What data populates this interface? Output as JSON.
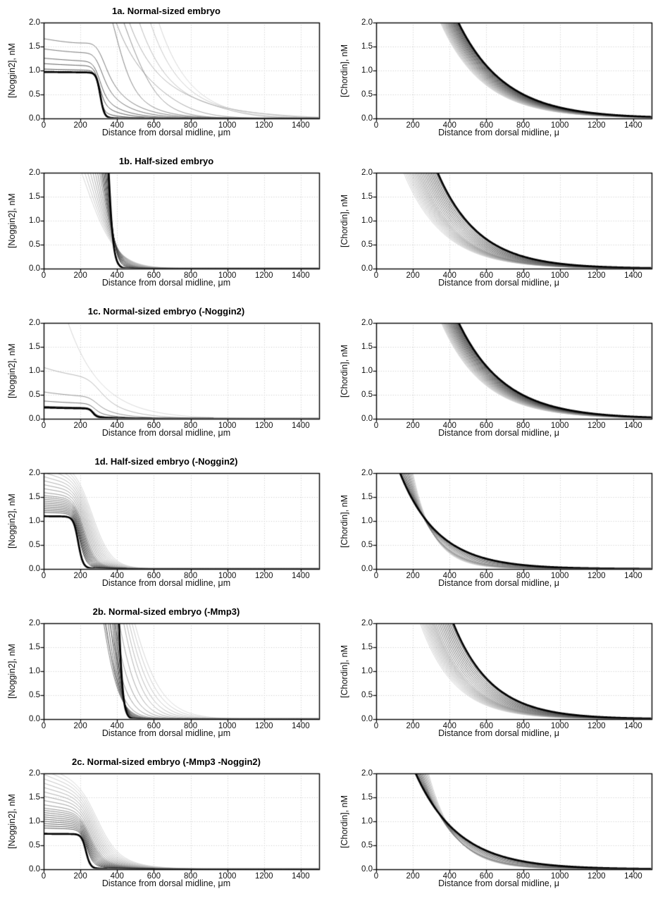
{
  "figure": {
    "background": "#ffffff",
    "frame_color": "#000000",
    "grid_color": "#c8c8c8",
    "grid_style": "dotted",
    "curve_shade_light": 207,
    "curve_shade_dark": 38,
    "final_curve_color": "#000000",
    "rows": 6,
    "cols": 2
  },
  "chart_data": [
    {
      "id": "1a_noggin2",
      "type": "line",
      "title": "1a. Normal-sized embryo",
      "xlabel": "Distance from dorsal midline, μm",
      "ylabel": "[Noggin2], nM",
      "xlim": [
        0,
        1500
      ],
      "ylim": [
        0,
        2
      ],
      "xtick_values": [
        0,
        200,
        400,
        600,
        800,
        1000,
        1200,
        1400
      ],
      "xtick_labels": [
        "0",
        "200",
        "400",
        "600",
        "800",
        "1000",
        "1200",
        "1400"
      ],
      "ytick_values": [
        0,
        0.5,
        1,
        1.5,
        2
      ],
      "ytick_labels": [
        "0.0",
        "0.5",
        "1.0",
        "1.5",
        "2.0"
      ],
      "grid": true,
      "family": {
        "model": "noggin",
        "n_curves": 12,
        "keyframes": [
          {
            "B": 80,
            "lB": 170,
            "P": 0,
            "e": 1600,
            "w": 120,
            "T": 0,
            "lT": 100
          },
          {
            "B": 40,
            "lB": 165,
            "P": 0.15,
            "e": 1200,
            "w": 120,
            "T": 0,
            "lT": 110
          },
          {
            "B": 16,
            "lB": 150,
            "P": 0.6,
            "e": 600,
            "w": 100,
            "T": 0.1,
            "lT": 130
          },
          {
            "B": 0.3,
            "lB": 400,
            "P": 1.45,
            "e": 310,
            "w": 28,
            "T": 1.3,
            "lT": 140
          },
          {
            "B": 0.15,
            "lB": 400,
            "P": 1.13,
            "e": 300,
            "w": 20,
            "T": 0.55,
            "lT": 120
          },
          {
            "B": 0.05,
            "lB": 400,
            "P": 0.98,
            "e": 302,
            "w": 12,
            "T": 0.15,
            "lT": 90
          }
        ],
        "final_curve": {
          "B": 0.02,
          "lB": 400,
          "P": 0.95,
          "e": 308,
          "w": 11,
          "T": 0.02,
          "lT": 60
        }
      }
    },
    {
      "id": "1a_chordin",
      "type": "line",
      "title": "",
      "xlabel": "Distance from dorsal midline, μ",
      "ylabel": "[Chordin], nM",
      "xlim": [
        0,
        1500
      ],
      "ylim": [
        0,
        2
      ],
      "xtick_values": [
        0,
        200,
        400,
        600,
        800,
        1000,
        1200,
        1400
      ],
      "xtick_labels": [
        "0",
        "200",
        "400",
        "600",
        "800",
        "1000",
        "1200",
        "1400"
      ],
      "ytick_values": [
        0,
        0.5,
        1,
        1.5,
        2
      ],
      "ytick_labels": [
        "0.0",
        "0.5",
        "1.0",
        "1.5",
        "2.0"
      ],
      "grid": true,
      "family": {
        "model": "chordin",
        "n_curves": 30,
        "keyframes": [
          {
            "x2": 350,
            "l": 235
          },
          {
            "x2": 448,
            "l": 255
          }
        ],
        "final_curve": {
          "x2": 448,
          "l": 255
        }
      }
    },
    {
      "id": "1b_noggin2",
      "type": "line",
      "title": "1b. Half-sized embryo",
      "xlabel": "Distance from dorsal midline, μm",
      "ylabel": "[Noggin2], nM",
      "xlim": [
        0,
        1500
      ],
      "ylim": [
        0,
        2
      ],
      "xtick_values": [
        0,
        200,
        400,
        600,
        800,
        1000,
        1200,
        1400
      ],
      "xtick_labels": [
        "0",
        "200",
        "400",
        "600",
        "800",
        "1000",
        "1200",
        "1400"
      ],
      "ytick_values": [
        0,
        0.5,
        1,
        1.5,
        2
      ],
      "ytick_labels": [
        "0.0",
        "0.5",
        "1.0",
        "1.5",
        "2.0"
      ],
      "grid": true,
      "family": {
        "model": "noggin",
        "n_curves": 16,
        "keyframes": [
          {
            "B": 0,
            "lB": 100,
            "P": 3.5,
            "e": 230,
            "w": 82,
            "T": 0,
            "lT": 100
          },
          {
            "B": 0,
            "lB": 100,
            "P": 4.5,
            "e": 300,
            "w": 45,
            "T": 0,
            "lT": 100
          },
          {
            "B": 0,
            "lB": 100,
            "P": 5,
            "e": 340,
            "w": 22,
            "T": 0,
            "lT": 100
          }
        ],
        "final_curve": {
          "B": 0,
          "lB": 100,
          "P": 5,
          "e": 348,
          "w": 15,
          "T": 0,
          "lT": 100
        }
      }
    },
    {
      "id": "1b_chordin",
      "type": "line",
      "title": "",
      "xlabel": "Distance from dorsal midline, μ",
      "ylabel": "[Chordin], nM",
      "xlim": [
        0,
        1500
      ],
      "ylim": [
        0,
        2
      ],
      "xtick_values": [
        0,
        200,
        400,
        600,
        800,
        1000,
        1200,
        1400
      ],
      "xtick_labels": [
        "0",
        "200",
        "400",
        "600",
        "800",
        "1000",
        "1200",
        "1400"
      ],
      "ytick_values": [
        0,
        0.5,
        1,
        1.5,
        2
      ],
      "ytick_labels": [
        "0.0",
        "0.5",
        "1.0",
        "1.5",
        "2.0"
      ],
      "grid": true,
      "family": {
        "model": "chordin",
        "n_curves": 22,
        "keyframes": [
          {
            "x2": 150,
            "l": 215
          },
          {
            "x2": 240,
            "l": 205
          },
          {
            "x2": 335,
            "l": 225
          }
        ],
        "final_curve": {
          "x2": 335,
          "l": 225
        }
      }
    },
    {
      "id": "1c_noggin2",
      "type": "line",
      "title": "1c. Normal-sized embryo (-Noggin2)",
      "xlabel": "Distance from dorsal midline, μm",
      "ylabel": "[Noggin2], nM",
      "xlim": [
        0,
        1500
      ],
      "ylim": [
        0,
        2
      ],
      "xtick_values": [
        0,
        200,
        400,
        600,
        800,
        1000,
        1200,
        1400
      ],
      "xtick_labels": [
        "0",
        "200",
        "400",
        "600",
        "800",
        "1000",
        "1200",
        "1400"
      ],
      "ytick_values": [
        0,
        0.5,
        1,
        1.5,
        2
      ],
      "ytick_labels": [
        "0.0",
        "0.5",
        "1.0",
        "1.5",
        "2.0"
      ],
      "grid": true,
      "family": {
        "model": "noggin",
        "n_curves": 5,
        "keyframes": [
          {
            "B": 4.2,
            "lB": 180,
            "P": 0,
            "e": 1600,
            "w": 120,
            "T": 0,
            "lT": 100
          },
          {
            "B": 0.45,
            "lB": 350,
            "P": 0.62,
            "e": 280,
            "w": 38,
            "T": 0.55,
            "lT": 150
          },
          {
            "B": 0.2,
            "lB": 350,
            "P": 0.36,
            "e": 275,
            "w": 26,
            "T": 0.28,
            "lT": 130
          },
          {
            "B": 0.1,
            "lB": 350,
            "P": 0.27,
            "e": 272,
            "w": 18,
            "T": 0.14,
            "lT": 120
          },
          {
            "B": 0.05,
            "lB": 350,
            "P": 0.21,
            "e": 270,
            "w": 12,
            "T": 0.06,
            "lT": 140
          }
        ],
        "final_curve": {
          "B": 0.04,
          "lB": 350,
          "P": 0.195,
          "e": 268,
          "w": 10,
          "T": 0.04,
          "lT": 140
        }
      }
    },
    {
      "id": "1c_chordin",
      "type": "line",
      "title": "",
      "xlabel": "Distance from dorsal midline, μ",
      "ylabel": "[Chordin], nM",
      "xlim": [
        0,
        1500
      ],
      "ylim": [
        0,
        2
      ],
      "xtick_values": [
        0,
        200,
        400,
        600,
        800,
        1000,
        1200,
        1400
      ],
      "xtick_labels": [
        "0",
        "200",
        "400",
        "600",
        "800",
        "1000",
        "1200",
        "1400"
      ],
      "ytick_values": [
        0,
        0.5,
        1,
        1.5,
        2
      ],
      "ytick_labels": [
        "0.0",
        "0.5",
        "1.0",
        "1.5",
        "2.0"
      ],
      "grid": true,
      "family": {
        "model": "chordin",
        "n_curves": 30,
        "keyframes": [
          {
            "x2": 355,
            "l": 230
          },
          {
            "x2": 450,
            "l": 250
          }
        ],
        "final_curve": {
          "x2": 450,
          "l": 250
        }
      }
    },
    {
      "id": "1d_noggin2",
      "type": "line",
      "title": "1d. Half-sized embryo (-Noggin2)",
      "xlabel": "Distance from dorsal midline, μm",
      "ylabel": "[Noggin2], nM",
      "xlim": [
        0,
        1500
      ],
      "ylim": [
        0,
        2
      ],
      "xtick_values": [
        0,
        200,
        400,
        600,
        800,
        1000,
        1200,
        1400
      ],
      "xtick_labels": [
        "0",
        "200",
        "400",
        "600",
        "800",
        "1000",
        "1200",
        "1400"
      ],
      "ytick_values": [
        0,
        0.5,
        1,
        1.5,
        2
      ],
      "ytick_labels": [
        "0.0",
        "0.5",
        "1.0",
        "1.5",
        "2.0"
      ],
      "grid": true,
      "family": {
        "model": "noggin",
        "n_curves": 20,
        "keyframes": [
          {
            "B": 1.1,
            "lB": 500,
            "P": 1.2,
            "e": 260,
            "w": 50,
            "T": 0.5,
            "lT": 75
          },
          {
            "B": 0.25,
            "lB": 500,
            "P": 1.3,
            "e": 215,
            "w": 30,
            "T": 0.28,
            "lT": 70
          },
          {
            "B": 0.06,
            "lB": 500,
            "P": 1.12,
            "e": 195,
            "w": 18,
            "T": 0.08,
            "lT": 65
          }
        ],
        "final_curve": {
          "B": 0.02,
          "lB": 500,
          "P": 1.08,
          "e": 188,
          "w": 13,
          "T": 0.03,
          "lT": 60
        }
      }
    },
    {
      "id": "1d_chordin",
      "type": "line",
      "title": "",
      "xlabel": "Distance from dorsal midline, μ",
      "ylabel": "[Chordin], nM",
      "xlim": [
        0,
        1500
      ],
      "ylim": [
        0,
        2
      ],
      "xtick_values": [
        0,
        200,
        400,
        600,
        800,
        1000,
        1200,
        1400
      ],
      "xtick_labels": [
        "0",
        "200",
        "400",
        "600",
        "800",
        "1000",
        "1200",
        "1400"
      ],
      "ytick_values": [
        0,
        0.5,
        1,
        1.5,
        2
      ],
      "ytick_labels": [
        "0.0",
        "0.5",
        "1.0",
        "1.5",
        "2.0"
      ],
      "grid": true,
      "family": {
        "model": "chordin",
        "n_curves": 14,
        "keyframes": [
          {
            "x2": 200,
            "l": 110
          },
          {
            "x2": 170,
            "l": 140
          },
          {
            "x2": 130,
            "l": 210
          }
        ],
        "final_curve": {
          "x2": 130,
          "l": 210
        }
      }
    },
    {
      "id": "2b_noggin2",
      "type": "line",
      "title": "2b. Normal-sized embryo (-Mmp3)",
      "xlabel": "Distance from dorsal midline, μm",
      "ylabel": "[Noggin2], nM",
      "xlim": [
        0,
        1500
      ],
      "ylim": [
        0,
        2
      ],
      "xtick_values": [
        0,
        200,
        400,
        600,
        800,
        1000,
        1200,
        1400
      ],
      "xtick_labels": [
        "0",
        "200",
        "400",
        "600",
        "800",
        "1000",
        "1200",
        "1400"
      ],
      "ytick_values": [
        0,
        0.5,
        1,
        1.5,
        2
      ],
      "ytick_labels": [
        "0.0",
        "0.5",
        "1.0",
        "1.5",
        "2.0"
      ],
      "grid": true,
      "family": {
        "model": "noggin",
        "n_curves": 18,
        "keyframes": [
          {
            "B": 0,
            "lB": 100,
            "P": 6,
            "e": 430,
            "w": 95,
            "T": 0,
            "lT": 100
          },
          {
            "B": 0,
            "lB": 100,
            "P": 6,
            "e": 385,
            "w": 68,
            "T": 0,
            "lT": 100
          },
          {
            "B": 0,
            "lB": 100,
            "P": 5,
            "e": 300,
            "w": 52,
            "T": 0,
            "lT": 100
          },
          {
            "B": 0,
            "lB": 100,
            "P": 5,
            "e": 360,
            "w": 30,
            "T": 0,
            "lT": 100
          },
          {
            "B": 0,
            "lB": 100,
            "P": 5,
            "e": 400,
            "w": 16,
            "T": 0,
            "lT": 100
          }
        ],
        "final_curve": {
          "B": 0,
          "lB": 100,
          "P": 5,
          "e": 405,
          "w": 13,
          "T": 0,
          "lT": 100
        }
      }
    },
    {
      "id": "2b_chordin",
      "type": "line",
      "title": "",
      "xlabel": "Distance from dorsal midline, μ",
      "ylabel": "[Chordin], nM",
      "xlim": [
        0,
        1500
      ],
      "ylim": [
        0,
        2
      ],
      "xtick_values": [
        0,
        200,
        400,
        600,
        800,
        1000,
        1200,
        1400
      ],
      "xtick_labels": [
        "0",
        "200",
        "400",
        "600",
        "800",
        "1000",
        "1200",
        "1400"
      ],
      "ytick_values": [
        0,
        0.5,
        1,
        1.5,
        2
      ],
      "ytick_labels": [
        "0.0",
        "0.5",
        "1.0",
        "1.5",
        "2.0"
      ],
      "grid": true,
      "family": {
        "model": "chordin",
        "n_curves": 22,
        "keyframes": [
          {
            "x2": 240,
            "l": 185
          },
          {
            "x2": 320,
            "l": 190
          },
          {
            "x2": 420,
            "l": 210
          }
        ],
        "final_curve": {
          "x2": 420,
          "l": 210
        }
      }
    },
    {
      "id": "2c_noggin2",
      "type": "line",
      "title": "2c. Normal-sized embryo (-Mmp3 -Noggin2)",
      "xlabel": "Distance from dorsal midline, μm",
      "ylabel": "[Noggin2], nM",
      "xlim": [
        0,
        1500
      ],
      "ylim": [
        0,
        2
      ],
      "xtick_values": [
        0,
        200,
        400,
        600,
        800,
        1000,
        1200,
        1400
      ],
      "xtick_labels": [
        "0",
        "200",
        "400",
        "600",
        "800",
        "1000",
        "1200",
        "1400"
      ],
      "ytick_values": [
        0,
        0.5,
        1,
        1.5,
        2
      ],
      "ytick_labels": [
        "0.0",
        "0.5",
        "1.0",
        "1.5",
        "2.0"
      ],
      "grid": true,
      "family": {
        "model": "noggin",
        "n_curves": 20,
        "keyframes": [
          {
            "B": 1.15,
            "lB": 600,
            "P": 1.0,
            "e": 280,
            "w": 55,
            "T": 0.55,
            "lT": 140
          },
          {
            "B": 0.35,
            "lB": 600,
            "P": 0.95,
            "e": 245,
            "w": 33,
            "T": 0.33,
            "lT": 115
          },
          {
            "B": 0.08,
            "lB": 600,
            "P": 0.78,
            "e": 233,
            "w": 18,
            "T": 0.1,
            "lT": 95
          }
        ],
        "final_curve": {
          "B": 0.02,
          "lB": 600,
          "P": 0.72,
          "e": 230,
          "w": 12,
          "T": 0.03,
          "lT": 85
        }
      }
    },
    {
      "id": "2c_chordin",
      "type": "line",
      "title": "",
      "xlabel": "Distance from dorsal midline, μ",
      "ylabel": "[Chordin], nM",
      "xlim": [
        0,
        1500
      ],
      "ylim": [
        0,
        2
      ],
      "xtick_values": [
        0,
        200,
        400,
        600,
        800,
        1000,
        1200,
        1400
      ],
      "xtick_labels": [
        "0",
        "200",
        "400",
        "600",
        "800",
        "1000",
        "1200",
        "1400"
      ],
      "ytick_values": [
        0,
        0.5,
        1,
        1.5,
        2
      ],
      "ytick_labels": [
        "0.0",
        "0.5",
        "1.0",
        "1.5",
        "2.0"
      ],
      "grid": true,
      "family": {
        "model": "chordin",
        "n_curves": 14,
        "keyframes": [
          {
            "x2": 285,
            "l": 140
          },
          {
            "x2": 250,
            "l": 165
          },
          {
            "x2": 215,
            "l": 235
          }
        ],
        "final_curve": {
          "x2": 215,
          "l": 235
        }
      }
    }
  ]
}
